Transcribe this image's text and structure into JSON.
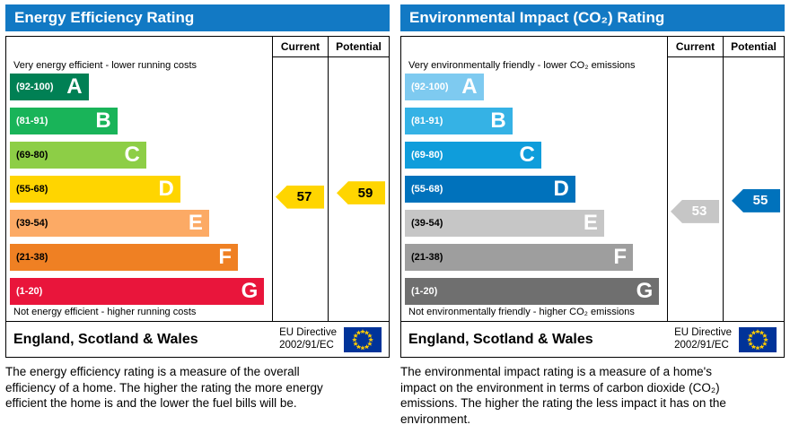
{
  "colors": {
    "header": "#1279c4",
    "eu_flag_blue": "#003399",
    "eu_flag_stars": "#ffcc00"
  },
  "panels": [
    {
      "id": "energy-efficiency",
      "title": "Energy Efficiency Rating",
      "columns": {
        "current": "Current",
        "potential": "Potential"
      },
      "caption_top": "Very energy efficient - lower running costs",
      "caption_bottom": "Not energy efficient - higher running costs",
      "bands": [
        {
          "label": "(92-100)",
          "letter": "A",
          "min": 92,
          "max": 100,
          "color": "#008054",
          "text_color": "#ffffff",
          "width_pct": 30
        },
        {
          "label": "(81-91)",
          "letter": "B",
          "min": 81,
          "max": 91,
          "color": "#19b459",
          "text_color": "#ffffff",
          "width_pct": 41
        },
        {
          "label": "(69-80)",
          "letter": "C",
          "min": 69,
          "max": 80,
          "color": "#8dce46",
          "text_color": "#000000",
          "width_pct": 52
        },
        {
          "label": "(55-68)",
          "letter": "D",
          "min": 55,
          "max": 68,
          "color": "#ffd500",
          "text_color": "#000000",
          "width_pct": 65
        },
        {
          "label": "(39-54)",
          "letter": "E",
          "min": 39,
          "max": 54,
          "color": "#fcaa65",
          "text_color": "#000000",
          "width_pct": 76
        },
        {
          "label": "(21-38)",
          "letter": "F",
          "min": 21,
          "max": 38,
          "color": "#ef8023",
          "text_color": "#000000",
          "width_pct": 87
        },
        {
          "label": "(1-20)",
          "letter": "G",
          "min": 1,
          "max": 20,
          "color": "#e9153b",
          "text_color": "#ffffff",
          "width_pct": 97
        }
      ],
      "current": {
        "value": 57,
        "color": "#ffd500",
        "text_color": "#000000"
      },
      "potential": {
        "value": 59,
        "color": "#ffd500",
        "text_color": "#000000"
      },
      "footer": {
        "region": "England, Scotland & Wales",
        "directive_line1": "EU Directive",
        "directive_line2": "2002/91/EC"
      },
      "description": "The energy efficiency rating is a measure of the overall efficiency of a home. The higher the rating the more energy efficient the home is and the lower the fuel bills will be."
    },
    {
      "id": "environmental-impact",
      "title": "Environmental Impact (CO₂) Rating",
      "columns": {
        "current": "Current",
        "potential": "Potential"
      },
      "caption_top": "Very environmentally friendly - lower CO₂ emissions",
      "caption_bottom": "Not environmentally friendly - higher CO₂ emissions",
      "bands": [
        {
          "label": "(92-100)",
          "letter": "A",
          "min": 92,
          "max": 100,
          "color": "#7ecaf0",
          "text_color": "#ffffff",
          "width_pct": 30
        },
        {
          "label": "(81-91)",
          "letter": "B",
          "min": 81,
          "max": 91,
          "color": "#35b2e5",
          "text_color": "#ffffff",
          "width_pct": 41
        },
        {
          "label": "(69-80)",
          "letter": "C",
          "min": 69,
          "max": 80,
          "color": "#0f9ddb",
          "text_color": "#ffffff",
          "width_pct": 52
        },
        {
          "label": "(55-68)",
          "letter": "D",
          "min": 55,
          "max": 68,
          "color": "#0072bc",
          "text_color": "#ffffff",
          "width_pct": 65
        },
        {
          "label": "(39-54)",
          "letter": "E",
          "min": 39,
          "max": 54,
          "color": "#c6c6c6",
          "text_color": "#000000",
          "width_pct": 76
        },
        {
          "label": "(21-38)",
          "letter": "F",
          "min": 21,
          "max": 38,
          "color": "#9e9e9e",
          "text_color": "#000000",
          "width_pct": 87
        },
        {
          "label": "(1-20)",
          "letter": "G",
          "min": 1,
          "max": 20,
          "color": "#6f6f6f",
          "text_color": "#ffffff",
          "width_pct": 97
        }
      ],
      "current": {
        "value": 53,
        "color": "#c6c6c6",
        "text_color": "#ffffff"
      },
      "potential": {
        "value": 55,
        "color": "#0072bc",
        "text_color": "#ffffff"
      },
      "footer": {
        "region": "England, Scotland & Wales",
        "directive_line1": "EU Directive",
        "directive_line2": "2002/91/EC"
      },
      "description": "The environmental impact rating is a measure of a home's impact on the environment in terms of carbon dioxide (CO₂) emissions. The higher the rating the less impact it has on the environment."
    }
  ],
  "chart_data": [
    {
      "type": "bar",
      "title": "Energy Efficiency Rating",
      "categories": [
        "A (92-100)",
        "B (81-91)",
        "C (69-80)",
        "D (55-68)",
        "E (39-54)",
        "F (21-38)",
        "G (1-20)"
      ],
      "series": [
        {
          "name": "Current",
          "values": [
            57
          ]
        },
        {
          "name": "Potential",
          "values": [
            59
          ]
        }
      ],
      "xlim": [
        1,
        100
      ],
      "annotations": [
        "Very energy efficient - lower running costs",
        "Not energy efficient - higher running costs",
        "England, Scotland & Wales",
        "EU Directive 2002/91/EC"
      ]
    },
    {
      "type": "bar",
      "title": "Environmental Impact (CO₂) Rating",
      "categories": [
        "A (92-100)",
        "B (81-91)",
        "C (69-80)",
        "D (55-68)",
        "E (39-54)",
        "F (21-38)",
        "G (1-20)"
      ],
      "series": [
        {
          "name": "Current",
          "values": [
            53
          ]
        },
        {
          "name": "Potential",
          "values": [
            55
          ]
        }
      ],
      "xlim": [
        1,
        100
      ],
      "annotations": [
        "Very environmentally friendly - lower CO₂ emissions",
        "Not environmentally friendly - higher CO₂ emissions",
        "England, Scotland & Wales",
        "EU Directive 2002/91/EC"
      ]
    }
  ]
}
